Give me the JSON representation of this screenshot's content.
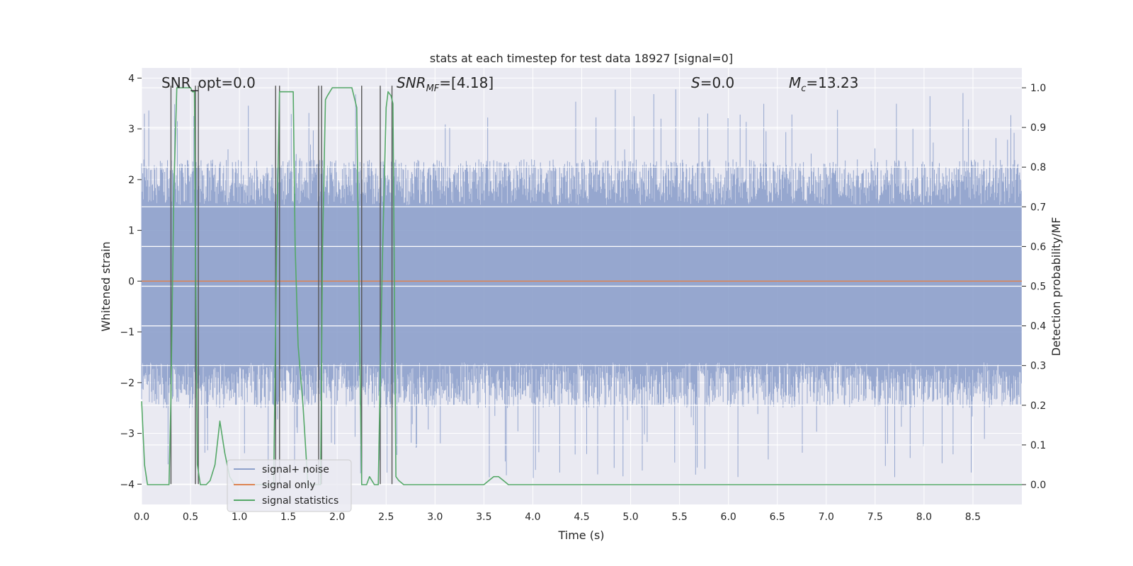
{
  "chart_data": {
    "type": "line",
    "title": "stats at each timestep for test data 18927 [signal=0]",
    "xlabel": "Time (s)",
    "ylabel": "Whitened strain",
    "y2label": "Detection probability/MF",
    "xlim": [
      0.0,
      9.0
    ],
    "ylim": [
      -4.4,
      4.2
    ],
    "y2lim": [
      -0.05,
      1.05
    ],
    "xticks": [
      "0.0",
      "0.5",
      "1.0",
      "1.5",
      "2.0",
      "2.5",
      "3.0",
      "3.5",
      "4.0",
      "4.5",
      "5.0",
      "5.5",
      "6.0",
      "6.5",
      "7.0",
      "7.5",
      "8.0",
      "8.5"
    ],
    "yticks": [
      "4",
      "3",
      "2",
      "1",
      "0",
      "−1",
      "−2",
      "−3",
      "−4"
    ],
    "y2ticks": [
      "1.0",
      "0.9",
      "0.8",
      "0.7",
      "0.6",
      "0.5",
      "0.4",
      "0.3",
      "0.2",
      "0.1",
      "0.0"
    ],
    "annotations": {
      "snr_opt": "SNR_opt=0.0",
      "snr_mf_sym": "SNR",
      "snr_mf_sub": "MF",
      "snr_mf_val": "=[4.18]",
      "s_sym": "S",
      "s_val": "=0.0",
      "mc_sym": "M",
      "mc_sub": "c",
      "mc_val": "=13.23"
    },
    "legend": {
      "placement": "lower-left",
      "entries": [
        "signal+ noise",
        "signal only",
        "signal statistics"
      ]
    },
    "colors": {
      "noise": "#8da0cb",
      "signal": "#dd8452",
      "stats": "#55a868",
      "vline": "#555555",
      "background": "#eaeaf2",
      "grid": "#ffffff"
    },
    "noise_band": {
      "typical_min": -1.6,
      "typical_max": 1.5,
      "peak_max": 3.8,
      "peak_min": -3.9
    },
    "vertical_markers_s": [
      0.3,
      0.55,
      0.58,
      1.37,
      1.41,
      1.81,
      1.84,
      2.25,
      2.44,
      2.56
    ],
    "series": [
      {
        "name": "signal statistics",
        "axis": "right",
        "x": [
          0.0,
          0.03,
          0.06,
          0.1,
          0.15,
          0.2,
          0.25,
          0.28,
          0.3,
          0.33,
          0.36,
          0.4,
          0.45,
          0.5,
          0.52,
          0.54,
          0.55,
          0.57,
          0.6,
          0.62,
          0.66,
          0.7,
          0.75,
          0.8,
          0.85,
          0.9,
          0.95,
          1.0,
          1.05,
          1.1,
          1.15,
          1.2,
          1.25,
          1.3,
          1.35,
          1.38,
          1.41,
          1.45,
          1.5,
          1.55,
          1.57,
          1.6,
          1.65,
          1.7,
          1.75,
          1.8,
          1.83,
          1.85,
          1.88,
          1.9,
          1.95,
          2.0,
          2.05,
          2.1,
          2.15,
          2.2,
          2.23,
          2.25,
          2.28,
          2.3,
          2.33,
          2.38,
          2.42,
          2.46,
          2.5,
          2.52,
          2.55,
          2.57,
          2.6,
          2.63,
          2.68,
          2.75,
          3.0,
          3.3,
          3.5,
          3.55,
          3.6,
          3.65,
          3.7,
          3.75,
          3.8,
          4.0,
          4.1,
          4.2,
          4.5,
          5.0,
          6.0,
          7.0,
          7.15,
          7.2,
          7.3,
          8.0,
          9.0
        ],
        "values": [
          0.21,
          0.05,
          0.0,
          0.0,
          0.0,
          0.0,
          0.0,
          0.0,
          0.22,
          0.75,
          1.0,
          1.0,
          1.0,
          1.0,
          0.99,
          0.99,
          0.6,
          0.05,
          0.0,
          0.0,
          0.0,
          0.01,
          0.05,
          0.16,
          0.08,
          0.02,
          0.0,
          0.0,
          0.0,
          0.0,
          0.0,
          0.0,
          0.0,
          0.0,
          0.0,
          0.6,
          0.99,
          0.99,
          0.99,
          0.99,
          0.6,
          0.35,
          0.2,
          0.0,
          0.0,
          0.0,
          0.0,
          0.6,
          0.97,
          0.98,
          1.0,
          1.0,
          1.0,
          1.0,
          1.0,
          0.95,
          0.35,
          0.0,
          0.0,
          0.0,
          0.02,
          0.0,
          0.0,
          0.55,
          0.95,
          0.99,
          0.98,
          0.96,
          0.02,
          0.01,
          0.0,
          0.0,
          0.0,
          0.0,
          0.0,
          0.01,
          0.02,
          0.02,
          0.01,
          0.0,
          0.0,
          0.0,
          0.0,
          0.0,
          0.0,
          0.0,
          0.0,
          0.0,
          0.0,
          0.0,
          0.0,
          0.0,
          0.0
        ]
      },
      {
        "name": "signal only",
        "axis": "left",
        "x": [
          0.0,
          9.0
        ],
        "values": [
          0.0,
          0.0
        ]
      }
    ]
  }
}
